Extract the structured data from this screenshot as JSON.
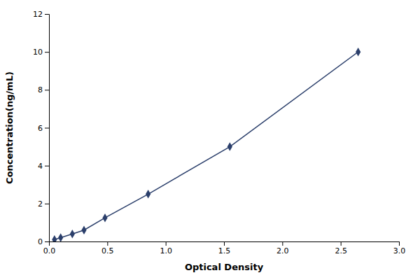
{
  "chart_data": {
    "type": "line",
    "x": [
      0.047,
      0.1,
      0.2,
      0.3,
      0.48,
      0.85,
      1.55,
      2.65
    ],
    "values": [
      0.1,
      0.2,
      0.4,
      0.6,
      1.25,
      2.5,
      5.0,
      10.0
    ],
    "color": "#2b3f6b",
    "marker": "diamond",
    "xlabel": "Optical Density",
    "ylabel": "Concentration(ng/mL)",
    "xlim": [
      0,
      3
    ],
    "ylim": [
      0,
      12
    ],
    "xticks": [
      {
        "value": 0,
        "label": "0.0"
      },
      0.5,
      {
        "value": 1,
        "label": "1.0"
      },
      1.5,
      {
        "value": 2,
        "label": "2.0"
      },
      2.5,
      {
        "value": 3,
        "label": "3.0"
      }
    ],
    "yticks": [
      0,
      2,
      4,
      6,
      8,
      10,
      12
    ],
    "grid": false
  }
}
